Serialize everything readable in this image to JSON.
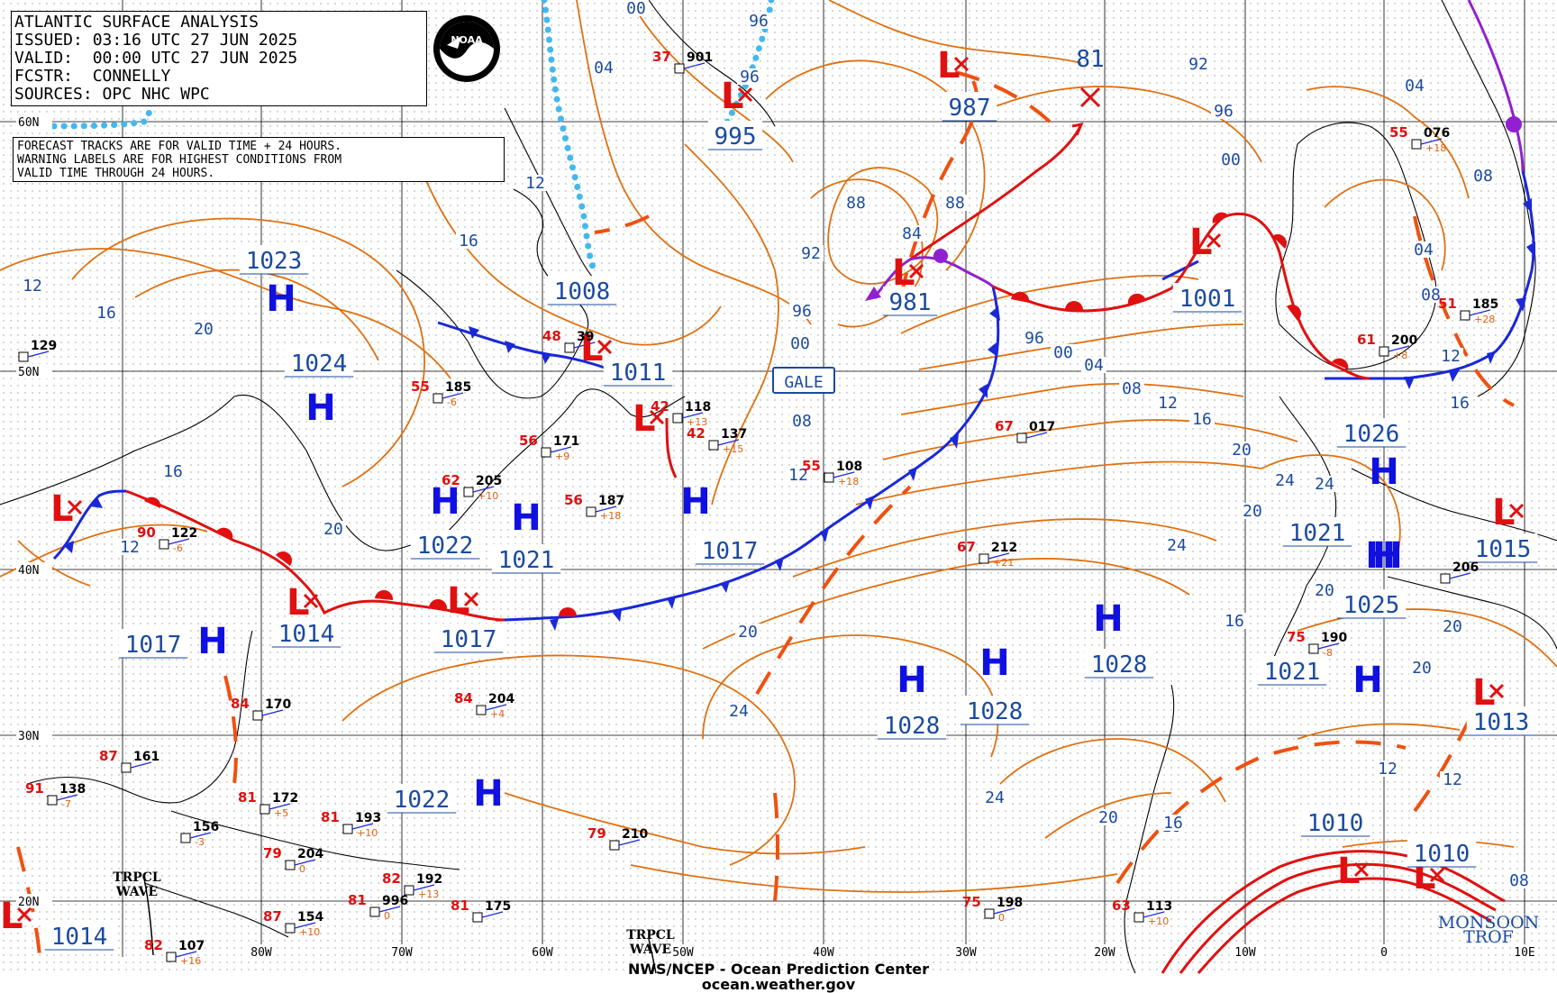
{
  "header": {
    "lines": [
      "ATLANTIC SURFACE ANALYSIS",
      "ISSUED: 03:16 UTC 27 JUN 2025",
      "VALID:  00:00 UTC 27 JUN 2025",
      "FCSTR:  CONNELLY",
      "SOURCES: OPC NHC WPC"
    ],
    "logo_text": "NOAA"
  },
  "note": {
    "lines": [
      "FORECAST TRACKS ARE FOR VALID TIME + 24 HOURS.",
      "WARNING LABELS ARE FOR HIGHEST CONDITIONS FROM",
      "VALID TIME THROUGH 24 HOURS."
    ]
  },
  "footer": {
    "line1": "NWS/NCEP - Ocean Prediction Center",
    "line2": "ocean.weather.gov"
  },
  "gale_label": "GALE",
  "lat_labels": [
    "60N",
    "50N",
    "40N",
    "30N",
    "20N"
  ],
  "lon_labels": [
    "80W",
    "70W",
    "60W",
    "50W",
    "40W",
    "30W",
    "20W",
    "10W",
    "0",
    "10E"
  ],
  "tropical_labels": [
    "TRPCL\nWAVE",
    "TRPCL\nWAVE",
    "MONSOON\nTROF"
  ],
  "highs": [
    {
      "label": "H",
      "value": "1023"
    },
    {
      "label": "H",
      "value": "1024"
    },
    {
      "label": "H",
      "value": "1022"
    },
    {
      "label": "H",
      "value": "1021"
    },
    {
      "label": "H",
      "value": "1017"
    },
    {
      "label": "H",
      "value": "1017"
    },
    {
      "label": "H",
      "value": "1028"
    },
    {
      "label": "H",
      "value": "1028"
    },
    {
      "label": "H",
      "value": "1028"
    },
    {
      "label": "H",
      "value": "1022"
    },
    {
      "label": "H",
      "value": "1026"
    },
    {
      "label": "H",
      "value": "1021"
    },
    {
      "label": "H",
      "value": "1025"
    },
    {
      "label": "H",
      "value": "1021"
    }
  ],
  "lows": [
    {
      "label": "L",
      "value": "995"
    },
    {
      "label": "L",
      "value": "987"
    },
    {
      "label": "L",
      "value": "981"
    },
    {
      "label": "L",
      "value": "1001"
    },
    {
      "label": "L",
      "value": "1008"
    },
    {
      "label": "L",
      "value": "1011"
    },
    {
      "label": "L",
      "value": "1017"
    },
    {
      "label": "L",
      "value": "1014"
    },
    {
      "label": "L",
      "value": "1017"
    },
    {
      "label": "L",
      "value": "1015"
    },
    {
      "label": "L",
      "value": "1013"
    },
    {
      "label": "L",
      "value": "1010"
    },
    {
      "label": "L",
      "value": "1010"
    },
    {
      "label": "L",
      "value": "1014"
    }
  ],
  "future_low_value": "81",
  "isobar_labels": [
    "00",
    "04",
    "96",
    "96",
    "04",
    "08",
    "12",
    "16",
    "12",
    "16",
    "20",
    "16",
    "12",
    "20",
    "88",
    "88",
    "92",
    "84",
    "96",
    "00",
    "08",
    "12",
    "96",
    "00",
    "04",
    "08",
    "12",
    "16",
    "20",
    "24",
    "92",
    "96",
    "00",
    "04",
    "08",
    "12",
    "16",
    "12",
    "16",
    "20",
    "24",
    "20",
    "20",
    "24",
    "24",
    "20",
    "16",
    "20",
    "20",
    "24",
    "20",
    "12",
    "16",
    "08",
    "12"
  ],
  "stations": [
    {
      "t": "129",
      "p": "",
      "d": ""
    },
    {
      "t": "122",
      "p": "-6",
      "d": "90"
    },
    {
      "t": "185",
      "p": "-6",
      "d": "55"
    },
    {
      "t": "171",
      "p": "+9",
      "d": "56"
    },
    {
      "t": "205",
      "p": "+10",
      "d": "62"
    },
    {
      "t": "187",
      "p": "+18",
      "d": "56"
    },
    {
      "t": "118",
      "p": "+13",
      "d": "42"
    },
    {
      "t": "137",
      "p": "+15",
      "d": "42"
    },
    {
      "t": "108",
      "p": "+18",
      "d": "55"
    },
    {
      "t": "017",
      "p": "",
      "d": "67"
    },
    {
      "t": "212",
      "p": "+21",
      "d": "67"
    },
    {
      "t": "076",
      "p": "+18",
      "d": "55"
    },
    {
      "t": "200",
      "p": "+8",
      "d": "61"
    },
    {
      "t": "185",
      "p": "+28",
      "d": "51"
    },
    {
      "t": "190",
      "p": "-8",
      "d": "75"
    },
    {
      "t": "206",
      "p": "",
      "d": ""
    },
    {
      "t": "170",
      "p": "",
      "d": "84"
    },
    {
      "t": "161",
      "p": "",
      "d": "87"
    },
    {
      "t": "138",
      "p": "-7",
      "d": "91"
    },
    {
      "t": "172",
      "p": "+5",
      "d": "81"
    },
    {
      "t": "156",
      "p": "-3",
      "d": ""
    },
    {
      "t": "204",
      "p": "0",
      "d": "79"
    },
    {
      "t": "193",
      "p": "+10",
      "d": "81"
    },
    {
      "t": "154",
      "p": "+10",
      "d": "87"
    },
    {
      "t": "996",
      "p": "0",
      "d": "81"
    },
    {
      "t": "192",
      "p": "+13",
      "d": "82"
    },
    {
      "t": "175",
      "p": "",
      "d": "81"
    },
    {
      "t": "107",
      "p": "+16",
      "d": "82"
    },
    {
      "t": "204",
      "p": "+4",
      "d": "84"
    },
    {
      "t": "210",
      "p": "",
      "d": "79"
    },
    {
      "t": "198",
      "p": "0",
      "d": "75"
    },
    {
      "t": "113",
      "p": "+10",
      "d": "63"
    },
    {
      "t": "901",
      "p": "",
      "d": "37"
    },
    {
      "t": "39",
      "p": "",
      "d": "48"
    }
  ],
  "colors": {
    "isobar": "#e07010",
    "label_blue": "#1a4aa0",
    "high_blue": "#1010e0",
    "low_red": "#e01010",
    "cold_front": "#1a28d8",
    "warm_front": "#e01010",
    "occluded": "#9020d0",
    "trough": "#f05010",
    "ice": "#44b8ec",
    "temp_red": "#e01010",
    "dew_green": "#708020",
    "dew_blue": "#1010c0",
    "press_orange": "#e06010",
    "coast": "#000000",
    "grid": "#000000"
  }
}
